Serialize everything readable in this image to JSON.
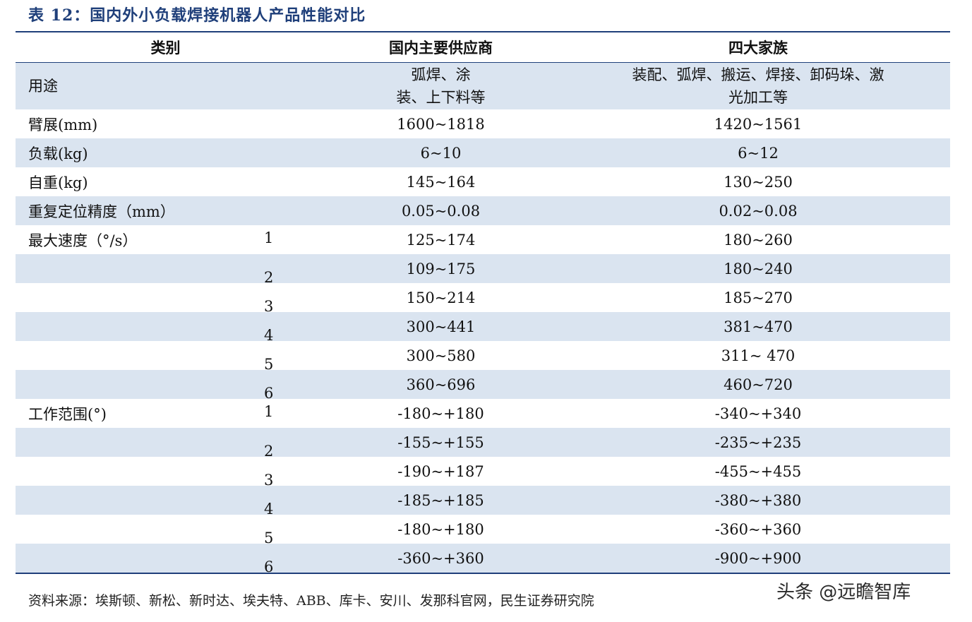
{
  "title": "表 12：国内外小负载焊接机器人产品性能对比",
  "headers": [
    "类别",
    "国内主要供应商",
    "四大家族"
  ],
  "usage": {
    "label": "用途",
    "domestic_line1": "弧焊、涂",
    "domestic_line2": "装、上下料等",
    "big4_line1": "装配、弧焊、搬运、焊接、卸码垛、激",
    "big4_line2": "光加工等"
  },
  "rows": [
    {
      "label": "臂展(mm)",
      "sub": "",
      "domestic": "1600~1818",
      "big4": "1420~1561"
    },
    {
      "label": "负载(kg)",
      "sub": "",
      "domestic": "6~10",
      "big4": "6~12"
    },
    {
      "label": "自重(kg)",
      "sub": "",
      "domestic": "145~164",
      "big4": "130~250"
    },
    {
      "label": "重复定位精度（mm）",
      "sub": "",
      "domestic": "0.05~0.08",
      "big4": "0.02~0.08"
    },
    {
      "label": "最大速度（°/s）",
      "sub": "1",
      "domestic": "125~174",
      "big4": "180~260"
    },
    {
      "label": "",
      "sub": "2",
      "domestic": "109~175",
      "big4": "180~240"
    },
    {
      "label": "",
      "sub": "3",
      "domestic": "150~214",
      "big4": "185~270"
    },
    {
      "label": "",
      "sub": "4",
      "domestic": "300~441",
      "big4": "381~470"
    },
    {
      "label": "",
      "sub": "5",
      "domestic": "300~580",
      "big4": "311~ 470"
    },
    {
      "label": "",
      "sub": "6",
      "domestic": "360~696",
      "big4": "460~720"
    },
    {
      "label": "工作范围(°)",
      "sub": "1",
      "domestic": "-180~+180",
      "big4": "-340~+340"
    },
    {
      "label": "",
      "sub": "2",
      "domestic": "-155~+155",
      "big4": "-235~+235"
    },
    {
      "label": "",
      "sub": "3",
      "domestic": "-190~+187",
      "big4": "-455~+455"
    },
    {
      "label": "",
      "sub": "4",
      "domestic": "-185~+185",
      "big4": "-380~+380"
    },
    {
      "label": "",
      "sub": "5",
      "domestic": "-180~+180",
      "big4": "-360~+360"
    },
    {
      "label": "",
      "sub": "6",
      "domestic": "-360~+360",
      "big4": "-900~+900"
    }
  ],
  "footer": "资料来源：埃斯顿、新松、新时达、埃夫特、ABB、库卡、安川、发那科官网，民生证券研究院",
  "watermark": "头条 @远瞻智库",
  "colors": {
    "accent": "#1f3f7a",
    "shade": "#dae4f0"
  }
}
